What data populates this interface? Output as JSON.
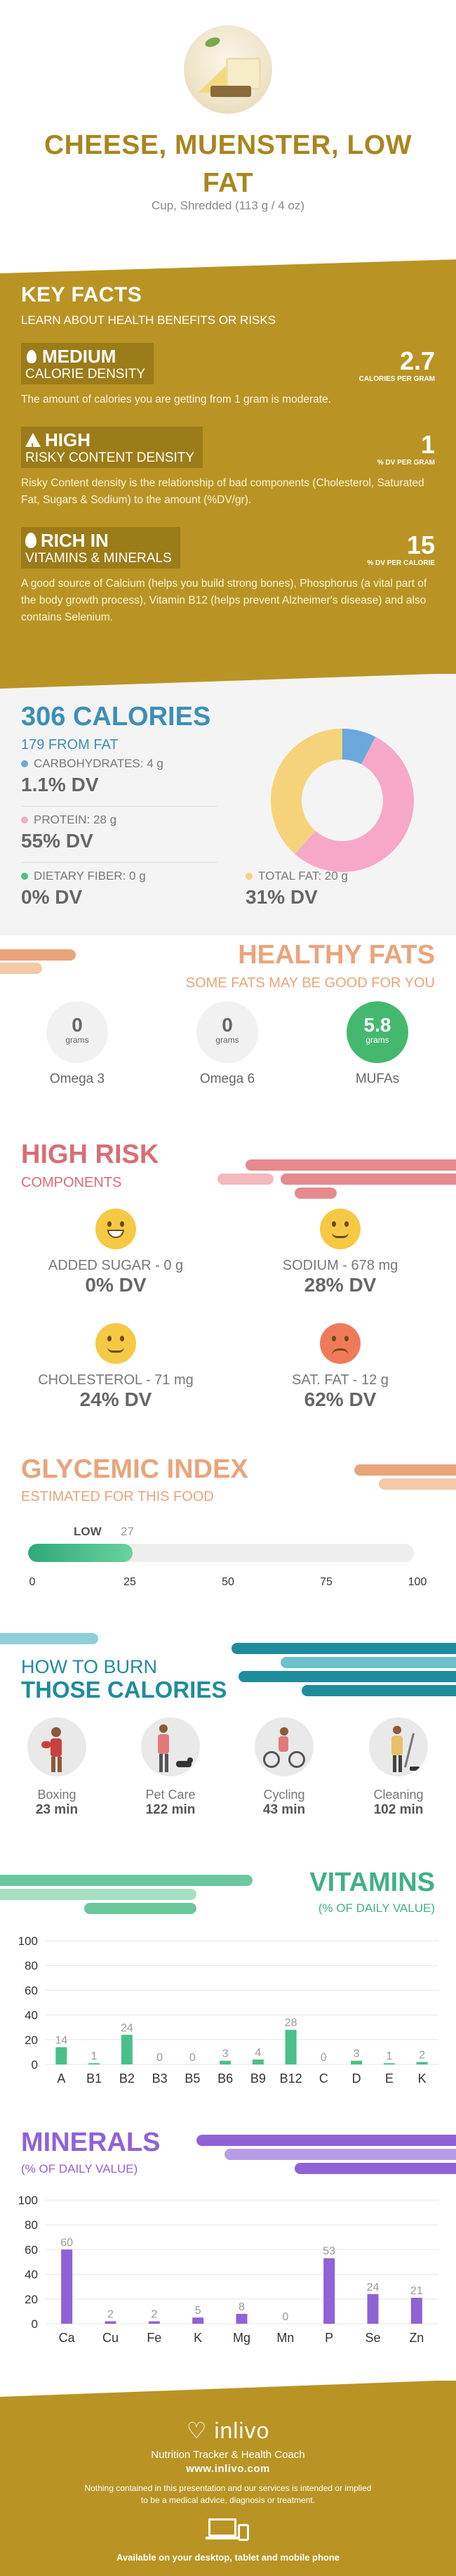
{
  "hero": {
    "title": "CHEESE, MUENSTER, LOW FAT",
    "serving": "Cup, Shredded (113 g / 4 oz)"
  },
  "key_facts": {
    "title": "KEY FACTS",
    "subtitle": "LEARN ABOUT HEALTH BENEFITS OR RISKS",
    "facts": [
      {
        "level": "MEDIUM",
        "metric": "CALORIE DENSITY",
        "value": "2.7",
        "unit": "CALORIES PER GRAM",
        "icon": "flame-icon",
        "description": "The amount of calories you are getting from 1 gram is moderate."
      },
      {
        "level": "HIGH",
        "metric": "RISKY CONTENT DENSITY",
        "value": "1",
        "unit": "% DV PER GRAM",
        "icon": "warning-icon",
        "description": "Risky Content density is the relationship of bad components (Cholesterol, Saturated Fat, Sugars & Sodium) to the amount (%DV/gr)."
      },
      {
        "level": "RICH  IN",
        "metric": "VITAMINS & MINERALS",
        "value": "15",
        "unit": "% DV PER CALORIE",
        "icon": "drop-icon",
        "description": "A good source of Calcium (helps you build strong bones), Phosphorus (a vital part of the body growth process), Vitamin B12 (helps prevent Alzheimer's disease) and also contains Selenium."
      }
    ]
  },
  "calories": {
    "title": "306 CALORIES",
    "subtitle": "179 FROM FAT",
    "macros": [
      {
        "label": "CARBOHYDRATES: 4 g",
        "dv": "1.1% DV",
        "color": "#6aa8dc"
      },
      {
        "label": "PROTEIN: 28 g",
        "dv": "55% DV",
        "color": "#f7a8c9"
      },
      {
        "label": "DIETARY FIBER: 0 g",
        "dv": "0% DV",
        "color": "#4bbf8a"
      },
      {
        "label": "TOTAL FAT: 20 g",
        "dv": "31% DV",
        "color": "#f6d37a"
      }
    ]
  },
  "chart_data": [
    {
      "type": "pie",
      "categories": [
        "Carbohydrates",
        "Protein",
        "Total Fat"
      ],
      "values": [
        4,
        28,
        20
      ],
      "colors": [
        "#6aa8dc",
        "#f7a8c9",
        "#f6d37a"
      ]
    },
    {
      "type": "bar",
      "title": "VITAMINS",
      "subtitle": "(% OF DAILY VALUE)",
      "categories": [
        "A",
        "B1",
        "B2",
        "B3",
        "B5",
        "B6",
        "B9",
        "B12",
        "C",
        "D",
        "E",
        "K"
      ],
      "values": [
        14,
        1,
        24,
        0,
        0,
        3,
        4,
        28,
        0,
        3,
        1,
        2
      ],
      "ylim": [
        0,
        100
      ],
      "yticks": [
        0,
        20,
        40,
        60,
        80,
        100
      ],
      "color": "#4bbf8a"
    },
    {
      "type": "bar",
      "title": "MINERALS",
      "subtitle": "(% OF DAILY VALUE)",
      "categories": [
        "Ca",
        "Cu",
        "Fe",
        "K",
        "Mg",
        "Mn",
        "P",
        "Se",
        "Zn"
      ],
      "values": [
        60,
        2,
        2,
        5,
        8,
        0,
        53,
        24,
        21
      ],
      "ylim": [
        0,
        100
      ],
      "yticks": [
        0,
        20,
        40,
        60,
        80,
        100
      ],
      "color": "#8f62d6"
    }
  ],
  "healthy_fats": {
    "title": "HEALTHY FATS",
    "subtitle": "SOME FATS MAY BE GOOD FOR YOU",
    "unit": "grams",
    "items": [
      {
        "value": "0",
        "label": "Omega 3"
      },
      {
        "value": "0",
        "label": "Omega 6"
      },
      {
        "value": "5.8",
        "label": "MUFAs"
      }
    ]
  },
  "high_risk": {
    "title": "HIGH RISK",
    "subtitle": "COMPONENTS",
    "items": [
      {
        "label": "ADDED SUGAR - 0 g",
        "dv": "0% DV",
        "face": "happy-face-icon"
      },
      {
        "label": "SODIUM - 678 mg",
        "dv": "28% DV",
        "face": "neutral-face-icon"
      },
      {
        "label": "CHOLESTEROL - 71 mg",
        "dv": "24% DV",
        "face": "neutral-face-icon"
      },
      {
        "label": "SAT. FAT - 12 g",
        "dv": "62% DV",
        "face": "sad-face-icon"
      }
    ]
  },
  "glycemic": {
    "title": "GLYCEMIC INDEX",
    "subtitle": "ESTIMATED FOR THIS FOOD",
    "level": "LOW",
    "value": "27",
    "value_num": 27,
    "ticks": [
      "0",
      "25",
      "50",
      "75",
      "100"
    ]
  },
  "burn": {
    "title_line1": "HOW TO BURN",
    "title_line2": "THOSE CALORIES",
    "activities": [
      {
        "name": "Boxing",
        "minutes": "23 min",
        "icon": "boxing-icon"
      },
      {
        "name": "Pet Care",
        "minutes": "122 min",
        "icon": "dog-walking-icon"
      },
      {
        "name": "Cycling",
        "minutes": "43 min",
        "icon": "cycling-icon"
      },
      {
        "name": "Cleaning",
        "minutes": "102 min",
        "icon": "cleaning-icon"
      }
    ]
  },
  "footer": {
    "logo": "inlivo",
    "tagline": "Nutrition Tracker & Health Coach",
    "site": "www.inlivo.com",
    "disclaimer": "Nothing contained in this presentation and our services is intended or implied to be a medical advice, diagnosis or treatment.",
    "available": "Available on your desktop, tablet and mobile phone"
  }
}
